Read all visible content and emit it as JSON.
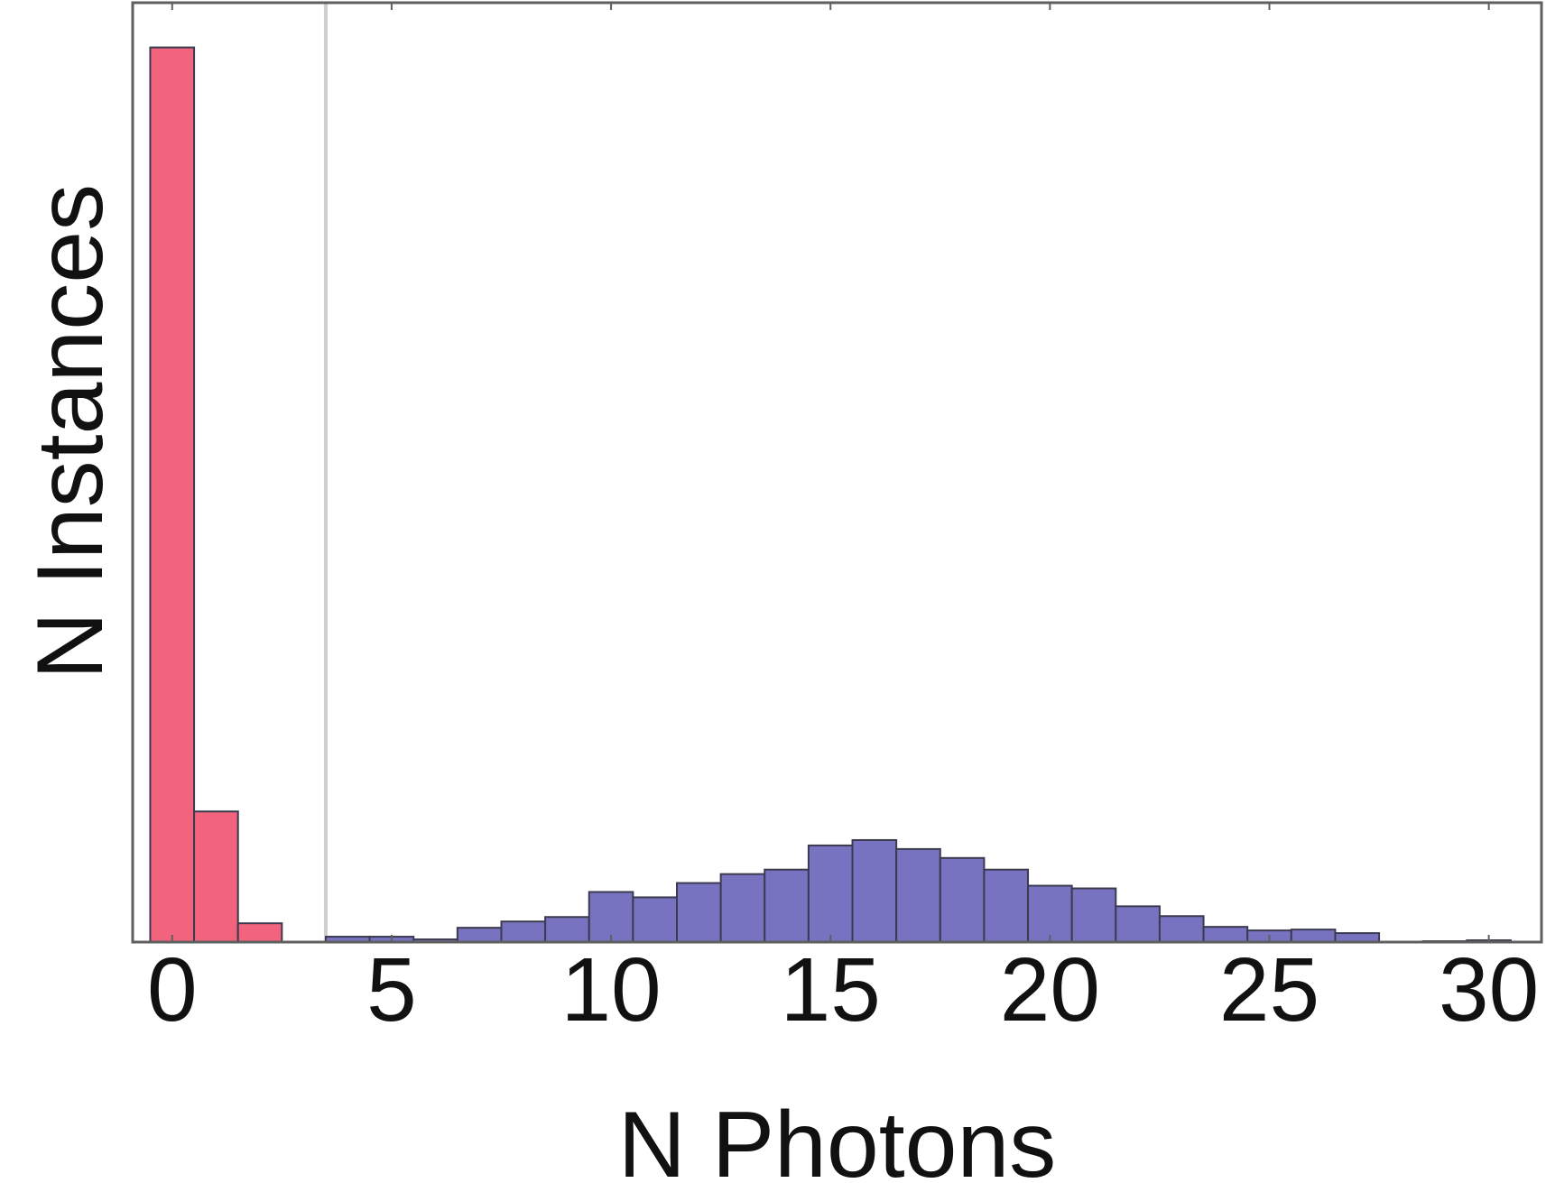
{
  "chart_data": {
    "type": "bar",
    "title": "",
    "xlabel": "N Photons",
    "ylabel": "N Instances",
    "xlim": [
      -0.9,
      31.2
    ],
    "ylim": [
      0,
      1050
    ],
    "xticks": [
      0,
      5,
      10,
      15,
      20,
      25,
      30
    ],
    "yticks": [],
    "grid": false,
    "legend": "none",
    "threshold_x": 3.5,
    "colors": {
      "dark_counts": "#f2637d",
      "bright_counts": "#7873c1",
      "bar_edge": "#3c3a4f",
      "threshold_line": "#cfcfcf",
      "frame": "#5f5f5f"
    },
    "series": [
      {
        "values": [
          {
            "x": 0,
            "y": 1000
          },
          {
            "x": 1,
            "y": 146
          },
          {
            "x": 2,
            "y": 21
          },
          {
            "x": 3,
            "y": 0
          }
        ]
      },
      {
        "values": [
          {
            "x": 4,
            "y": 6
          },
          {
            "x": 5,
            "y": 6
          },
          {
            "x": 6,
            "y": 3
          },
          {
            "x": 7,
            "y": 16
          },
          {
            "x": 8,
            "y": 23
          },
          {
            "x": 9,
            "y": 28
          },
          {
            "x": 10,
            "y": 56
          },
          {
            "x": 11,
            "y": 50
          },
          {
            "x": 12,
            "y": 66
          },
          {
            "x": 13,
            "y": 76
          },
          {
            "x": 14,
            "y": 81
          },
          {
            "x": 15,
            "y": 108
          },
          {
            "x": 16,
            "y": 114
          },
          {
            "x": 17,
            "y": 104
          },
          {
            "x": 18,
            "y": 94
          },
          {
            "x": 19,
            "y": 81
          },
          {
            "x": 20,
            "y": 63
          },
          {
            "x": 21,
            "y": 60
          },
          {
            "x": 22,
            "y": 40
          },
          {
            "x": 23,
            "y": 29
          },
          {
            "x": 24,
            "y": 17
          },
          {
            "x": 25,
            "y": 13
          },
          {
            "x": 26,
            "y": 14
          },
          {
            "x": 27,
            "y": 10
          },
          {
            "x": 28,
            "y": 0
          },
          {
            "x": 29,
            "y": 1
          },
          {
            "x": 30,
            "y": 2
          }
        ]
      }
    ]
  }
}
